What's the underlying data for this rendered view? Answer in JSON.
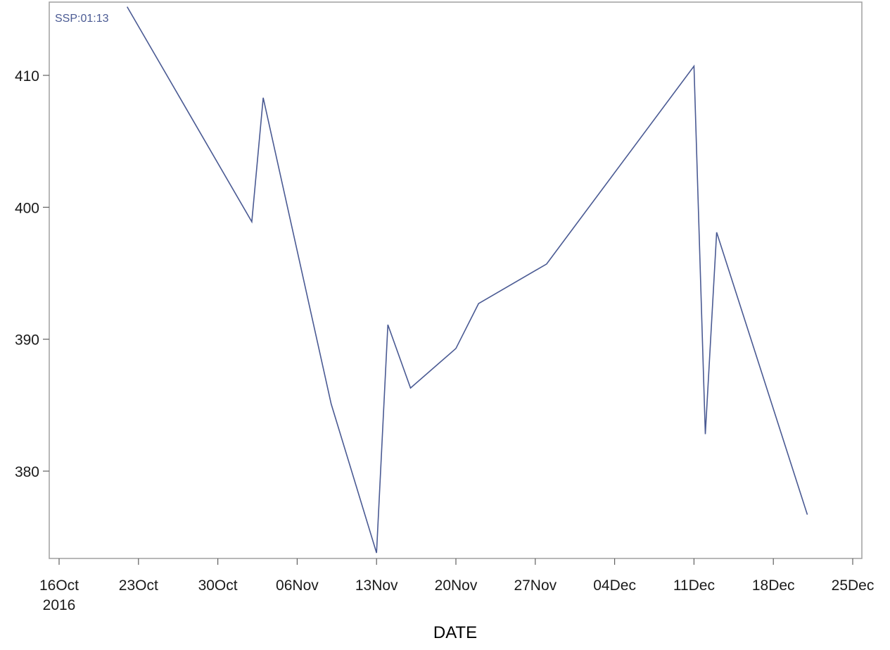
{
  "chart_data": {
    "type": "line",
    "xlabel": "DATE",
    "ylabel": "",
    "inset_label": "SSP:01:13",
    "x_tick_labels": [
      "16Oct",
      "23Oct",
      "30Oct",
      "06Nov",
      "13Nov",
      "20Nov",
      "27Nov",
      "04Dec",
      "11Dec",
      "18Dec",
      "25Dec"
    ],
    "x_tick_sublabel": "2016",
    "y_ticks": [
      "380",
      "390",
      "400",
      "410"
    ],
    "xlim": [
      "2016-10-15",
      "2016-12-25"
    ],
    "ylim": [
      373,
      415
    ],
    "line_color": "#4a5a93",
    "series": [
      {
        "x": [
          "2016-10-22",
          "2016-11-02",
          "2016-11-03",
          "2016-11-09",
          "2016-11-13",
          "2016-11-14",
          "2016-11-16",
          "2016-11-20",
          "2016-11-22",
          "2016-11-28",
          "2016-12-11",
          "2016-12-12",
          "2016-12-13",
          "2016-12-21"
        ],
        "y": [
          415.2,
          398.9,
          408.3,
          385.1,
          373.8,
          391.1,
          386.3,
          389.3,
          392.7,
          395.7,
          410.7,
          382.8,
          398.1,
          376.7
        ]
      }
    ]
  }
}
